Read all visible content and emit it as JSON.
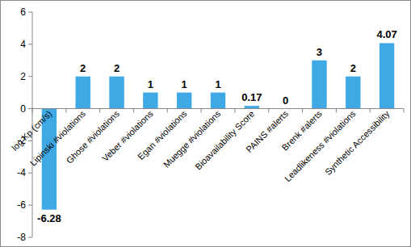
{
  "chart_data": {
    "type": "bar",
    "categories": [
      "log Kp (cm/s)",
      "Lipinski #violations",
      "Ghose #violations",
      "Veber #violations",
      "Egan #violations",
      "Muegge #violations",
      "Bioavailability Score",
      "PAINS #alerts",
      "Brenk #alerts",
      "Leadlikeness #violations",
      "Synthetic Accessibility"
    ],
    "values": [
      -6.28,
      2,
      2,
      1,
      1,
      1,
      0.17,
      0,
      3,
      2,
      4.07
    ],
    "color": "#3fa9e6",
    "ylim": [
      -8,
      6
    ],
    "yticks": [
      -8,
      -6,
      -4,
      -2,
      0,
      2,
      4,
      6
    ],
    "grid": false,
    "data_labels": true
  }
}
